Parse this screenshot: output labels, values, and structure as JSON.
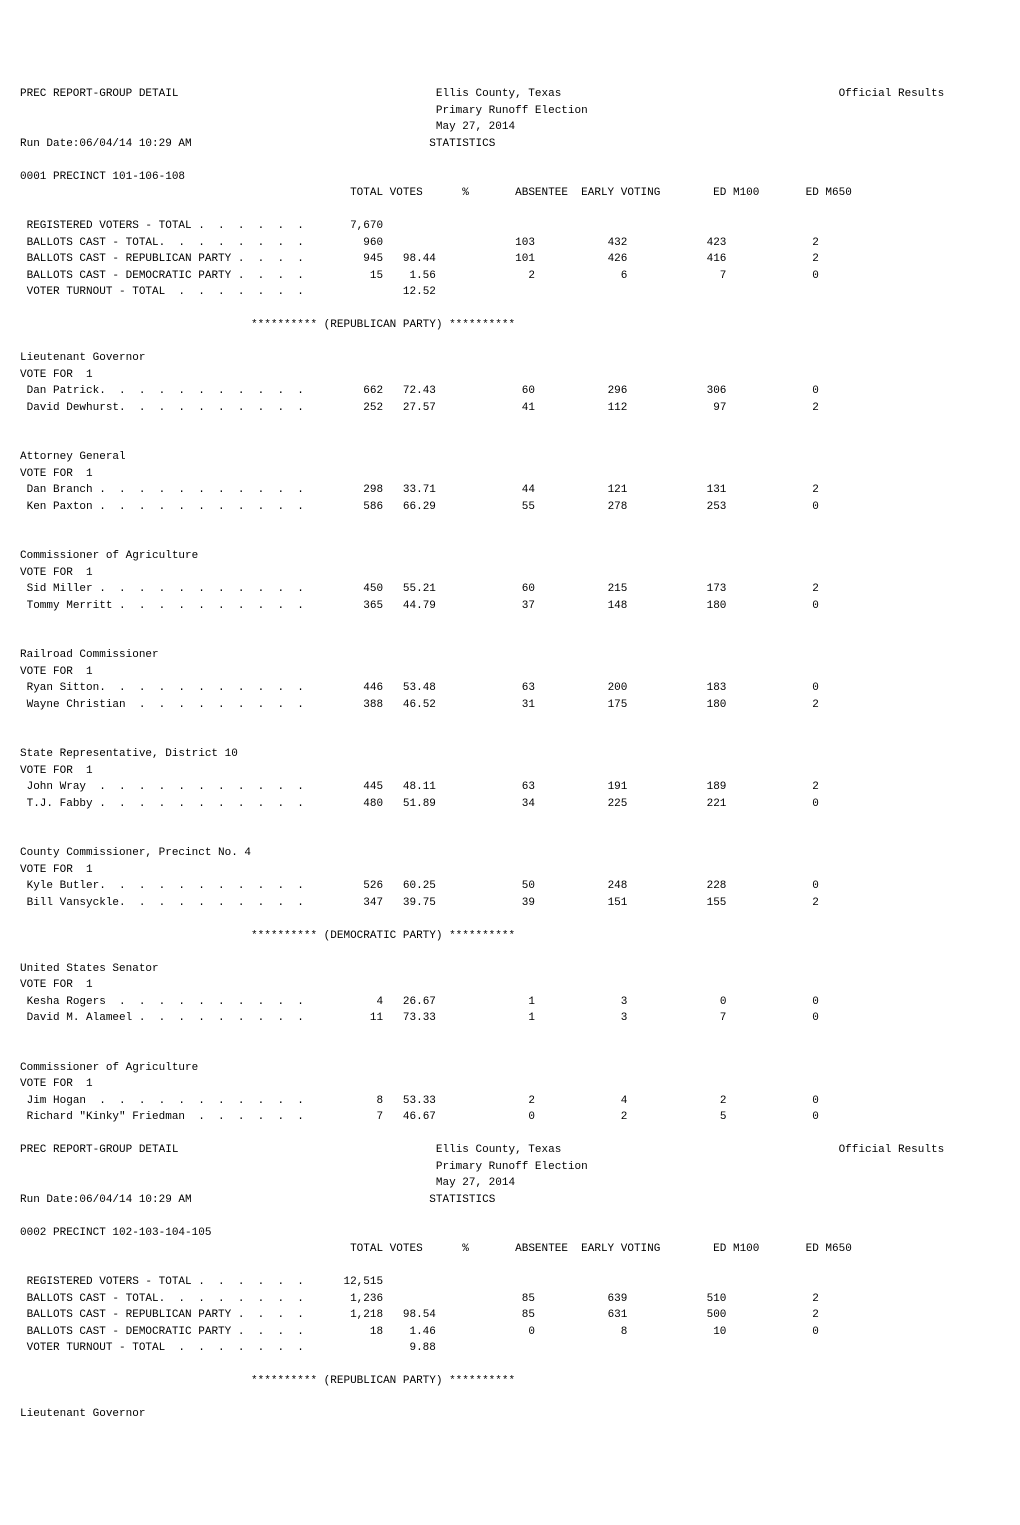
{
  "header": {
    "report_title": "PREC REPORT-GROUP DETAIL",
    "county": "Ellis County, Texas",
    "election": "Primary Runoff Election",
    "date": "May 27, 2014",
    "official": "Official Results",
    "run_date": "Run Date:06/04/14 10:29 AM",
    "statistics": "STATISTICS"
  },
  "columns": {
    "total_votes": "TOTAL VOTES",
    "pct": "%",
    "absentee": "ABSENTEE",
    "early_voting": "EARLY VOTING",
    "ed_m100": "ED M100",
    "ed_m650": "ED M650"
  },
  "party_headers": {
    "republican": "********** (REPUBLICAN PARTY) **********",
    "democratic": "********** (DEMOCRATIC PARTY) **********"
  },
  "vote_for": "VOTE FOR  1",
  "precinct1": {
    "name": "0001 PRECINCT 101-106-108",
    "registered": {
      "label": "REGISTERED VOTERS - TOTAL .  .  .  .  .  .",
      "total": "7,670"
    },
    "ballots_total": {
      "label": "BALLOTS CAST - TOTAL.  .  .  .  .  .  .  .",
      "total": "960",
      "absentee": "103",
      "early": "432",
      "m100": "423",
      "m650": "2"
    },
    "ballots_rep": {
      "label": "BALLOTS CAST - REPUBLICAN PARTY .  .  .  .",
      "total": "945",
      "pct": "98.44",
      "absentee": "101",
      "early": "426",
      "m100": "416",
      "m650": "2"
    },
    "ballots_dem": {
      "label": "BALLOTS CAST - DEMOCRATIC PARTY .  .  .  .",
      "total": "15",
      "pct": "1.56",
      "absentee": "2",
      "early": "6",
      "m100": "7",
      "m650": "0"
    },
    "turnout": {
      "label": "VOTER TURNOUT - TOTAL  .  .  .  .  .  .  .",
      "pct": "12.52"
    },
    "races": {
      "lt_gov": {
        "title": "Lieutenant Governor",
        "c1": {
          "name": "Dan Patrick.  .  .  .  .  .  .  .  .  .  .",
          "total": "662",
          "pct": "72.43",
          "absentee": "60",
          "early": "296",
          "m100": "306",
          "m650": "0"
        },
        "c2": {
          "name": "David Dewhurst.  .  .  .  .  .  .  .  .  .",
          "total": "252",
          "pct": "27.57",
          "absentee": "41",
          "early": "112",
          "m100": "97",
          "m650": "2"
        }
      },
      "ag": {
        "title": "Attorney General",
        "c1": {
          "name": "Dan Branch .  .  .  .  .  .  .  .  .  .  .",
          "total": "298",
          "pct": "33.71",
          "absentee": "44",
          "early": "121",
          "m100": "131",
          "m650": "2"
        },
        "c2": {
          "name": "Ken Paxton .  .  .  .  .  .  .  .  .  .  .",
          "total": "586",
          "pct": "66.29",
          "absentee": "55",
          "early": "278",
          "m100": "253",
          "m650": "0"
        }
      },
      "comm_ag_r": {
        "title": "Commissioner of Agriculture",
        "c1": {
          "name": "Sid Miller .  .  .  .  .  .  .  .  .  .  .",
          "total": "450",
          "pct": "55.21",
          "absentee": "60",
          "early": "215",
          "m100": "173",
          "m650": "2"
        },
        "c2": {
          "name": "Tommy Merritt .  .  .  .  .  .  .  .  .  .",
          "total": "365",
          "pct": "44.79",
          "absentee": "37",
          "early": "148",
          "m100": "180",
          "m650": "0"
        }
      },
      "rr_comm": {
        "title": "Railroad Commissioner",
        "c1": {
          "name": "Ryan Sitton.  .  .  .  .  .  .  .  .  .  .",
          "total": "446",
          "pct": "53.48",
          "absentee": "63",
          "early": "200",
          "m100": "183",
          "m650": "0"
        },
        "c2": {
          "name": "Wayne Christian  .  .  .  .  .  .  .  .  .",
          "total": "388",
          "pct": "46.52",
          "absentee": "31",
          "early": "175",
          "m100": "180",
          "m650": "2"
        }
      },
      "state_rep": {
        "title": "State Representative, District 10",
        "c1": {
          "name": "John Wray  .  .  .  .  .  .  .  .  .  .  .",
          "total": "445",
          "pct": "48.11",
          "absentee": "63",
          "early": "191",
          "m100": "189",
          "m650": "2"
        },
        "c2": {
          "name": "T.J. Fabby .  .  .  .  .  .  .  .  .  .  .",
          "total": "480",
          "pct": "51.89",
          "absentee": "34",
          "early": "225",
          "m100": "221",
          "m650": "0"
        }
      },
      "county_comm": {
        "title": "County Commissioner, Precinct No. 4",
        "c1": {
          "name": "Kyle Butler.  .  .  .  .  .  .  .  .  .  .",
          "total": "526",
          "pct": "60.25",
          "absentee": "50",
          "early": "248",
          "m100": "228",
          "m650": "0"
        },
        "c2": {
          "name": "Bill Vansyckle.  .  .  .  .  .  .  .  .  .",
          "total": "347",
          "pct": "39.75",
          "absentee": "39",
          "early": "151",
          "m100": "155",
          "m650": "2"
        }
      },
      "us_sen": {
        "title": "United States Senator",
        "c1": {
          "name": "Kesha Rogers  .  .  .  .  .  .  .  .  .  .",
          "total": "4",
          "pct": "26.67",
          "absentee": "1",
          "early": "3",
          "m100": "0",
          "m650": "0"
        },
        "c2": {
          "name": "David M. Alameel .  .  .  .  .  .  .  .  .",
          "total": "11",
          "pct": "73.33",
          "absentee": "1",
          "early": "3",
          "m100": "7",
          "m650": "0"
        }
      },
      "comm_ag_d": {
        "title": "Commissioner of Agriculture",
        "c1": {
          "name": "Jim Hogan  .  .  .  .  .  .  .  .  .  .  .",
          "total": "8",
          "pct": "53.33",
          "absentee": "2",
          "early": "4",
          "m100": "2",
          "m650": "0"
        },
        "c2": {
          "name": "Richard \"Kinky\" Friedman  .  .  .  .  .  .",
          "total": "7",
          "pct": "46.67",
          "absentee": "0",
          "early": "2",
          "m100": "5",
          "m650": "0"
        }
      }
    }
  },
  "precinct2": {
    "name": "0002 PRECINCT 102-103-104-105",
    "registered": {
      "label": "REGISTERED VOTERS - TOTAL .  .  .  .  .  .",
      "total": "12,515"
    },
    "ballots_total": {
      "label": "BALLOTS CAST - TOTAL.  .  .  .  .  .  .  .",
      "total": "1,236",
      "absentee": "85",
      "early": "639",
      "m100": "510",
      "m650": "2"
    },
    "ballots_rep": {
      "label": "BALLOTS CAST - REPUBLICAN PARTY .  .  .  .",
      "total": "1,218",
      "pct": "98.54",
      "absentee": "85",
      "early": "631",
      "m100": "500",
      "m650": "2"
    },
    "ballots_dem": {
      "label": "BALLOTS CAST - DEMOCRATIC PARTY .  .  .  .",
      "total": "18",
      "pct": "1.46",
      "absentee": "0",
      "early": "8",
      "m100": "10",
      "m650": "0"
    },
    "turnout": {
      "label": "VOTER TURNOUT - TOTAL  .  .  .  .  .  .  .",
      "pct": "9.88"
    },
    "lt_gov_title": "Lieutenant Governor"
  }
}
